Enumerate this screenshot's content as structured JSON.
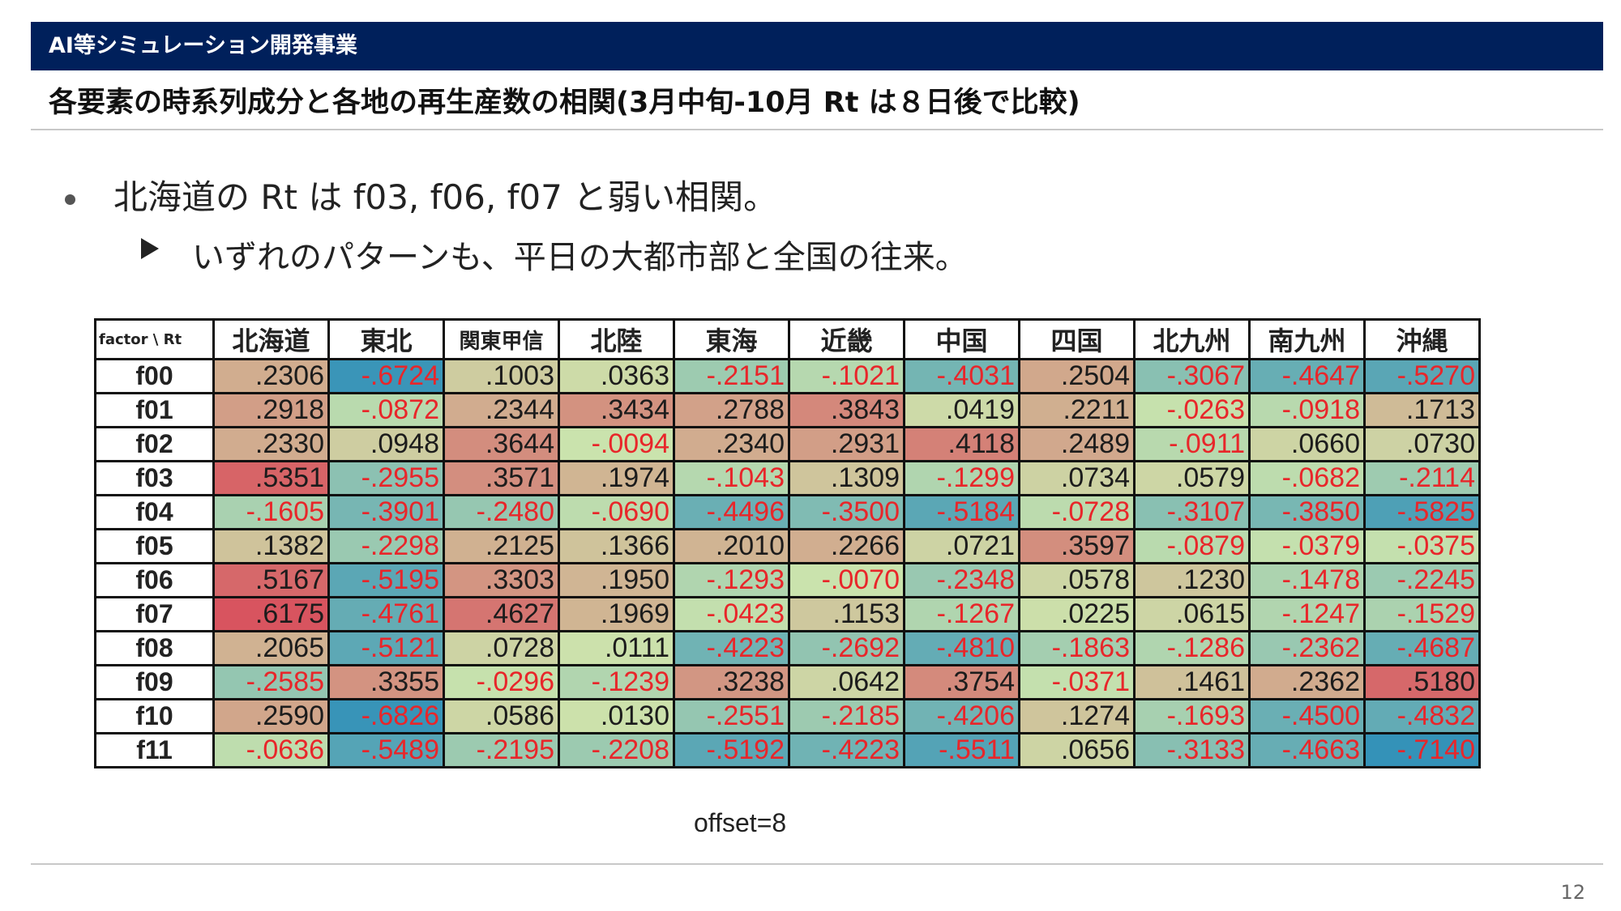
{
  "header": {
    "label": "AI等シミュレーション開発事業"
  },
  "slide": {
    "title": "各要素の時系列成分と各地の再生産数の相関(3月中旬-10月 Rt は８日後で比較)",
    "bullet1": "北海道の Rt は f03, f06, f07 と弱い相関。",
    "bullet2": "いずれのパターンも、平日の大都市部と全国の往来。",
    "caption": "offset=8",
    "page_number": "12"
  },
  "table": {
    "corner": "factor \\ Rt",
    "columns": [
      "北海道",
      "東北",
      "関東甲信",
      "北陸",
      "東海",
      "近畿",
      "中国",
      "四国",
      "北九州",
      "南九州",
      "沖縄"
    ],
    "rows": [
      {
        "label": "f00",
        "cells": [
          ".2306",
          "-.6724",
          ".1003",
          ".0363",
          "-.2151",
          "-.1021",
          "-.4031",
          ".2504",
          "-.3067",
          "-.4647",
          "-.5270"
        ]
      },
      {
        "label": "f01",
        "cells": [
          ".2918",
          "-.0872",
          ".2344",
          ".3434",
          ".2788",
          ".3843",
          ".0419",
          ".2211",
          "-.0263",
          "-.0918",
          ".1713"
        ]
      },
      {
        "label": "f02",
        "cells": [
          ".2330",
          ".0948",
          ".3644",
          "-.0094",
          ".2340",
          ".2931",
          ".4118",
          ".2489",
          "-.0911",
          ".0660",
          ".0730"
        ]
      },
      {
        "label": "f03",
        "cells": [
          ".5351",
          "-.2955",
          ".3571",
          ".1974",
          "-.1043",
          ".1309",
          "-.1299",
          ".0734",
          ".0579",
          "-.0682",
          "-.2114"
        ]
      },
      {
        "label": "f04",
        "cells": [
          "-.1605",
          "-.3901",
          "-.2480",
          "-.0690",
          "-.4496",
          "-.3500",
          "-.5184",
          "-.0728",
          "-.3107",
          "-.3850",
          "-.5825"
        ]
      },
      {
        "label": "f05",
        "cells": [
          ".1382",
          "-.2298",
          ".2125",
          ".1366",
          ".2010",
          ".2266",
          ".0721",
          ".3597",
          "-.0879",
          "-.0379",
          "-.0375"
        ]
      },
      {
        "label": "f06",
        "cells": [
          ".5167",
          "-.5195",
          ".3303",
          ".1950",
          "-.1293",
          "-.0070",
          "-.2348",
          ".0578",
          ".1230",
          "-.1478",
          "-.2245"
        ]
      },
      {
        "label": "f07",
        "cells": [
          ".6175",
          "-.4761",
          ".4627",
          ".1969",
          "-.0423",
          ".1153",
          "-.1267",
          ".0225",
          ".0615",
          "-.1247",
          "-.1529"
        ]
      },
      {
        "label": "f08",
        "cells": [
          ".2065",
          "-.5121",
          ".0728",
          ".0111",
          "-.4223",
          "-.2692",
          "-.4810",
          "-.1863",
          "-.1286",
          "-.2362",
          "-.4687"
        ]
      },
      {
        "label": "f09",
        "cells": [
          "-.2585",
          ".3355",
          "-.0296",
          "-.1239",
          ".3238",
          ".0642",
          ".3754",
          "-.0371",
          ".1461",
          ".2362",
          ".5180"
        ]
      },
      {
        "label": "f10",
        "cells": [
          ".2590",
          "-.6826",
          ".0586",
          ".0130",
          "-.2551",
          "-.2185",
          "-.4206",
          ".1274",
          "-.1693",
          "-.4500",
          "-.4832"
        ]
      },
      {
        "label": "f11",
        "cells": [
          "-.0636",
          "-.5489",
          "-.2195",
          "-.2208",
          "-.5192",
          "-.4223",
          "-.5511",
          ".0656",
          "-.3133",
          "-.4663",
          "-.7140"
        ]
      }
    ]
  },
  "colors": {
    "header_band": "#00205b",
    "negative_text": "#e8262a",
    "heat_high": "#d8545f",
    "heat_mid": "#cce4ad",
    "heat_low": "#3492b8"
  }
}
